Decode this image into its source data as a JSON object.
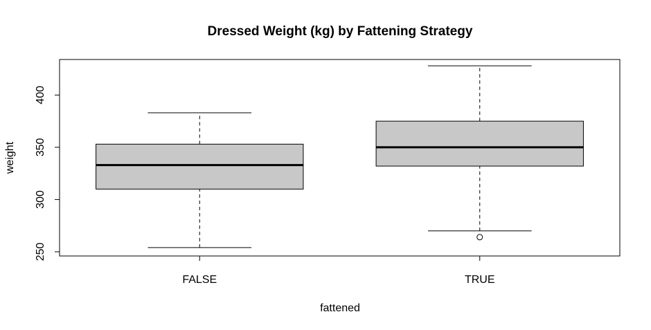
{
  "chart_data": {
    "type": "boxplot",
    "title": "Dressed Weight (kg) by Fattening Strategy",
    "xlabel": "fattened",
    "ylabel": "weight",
    "categories": [
      "FALSE",
      "TRUE"
    ],
    "ylim": [
      246,
      434
    ],
    "yticks": [
      "250",
      "300",
      "350",
      "400"
    ],
    "grid": false,
    "legend": "none",
    "box_fill": "#c8c8c8",
    "boxes": [
      {
        "category": "FALSE",
        "whisker_low": 254,
        "q1": 310,
        "median": 333,
        "q3": 353,
        "whisker_high": 383,
        "outliers": []
      },
      {
        "category": "TRUE",
        "whisker_low": 270,
        "q1": 332,
        "median": 350,
        "q3": 375,
        "whisker_high": 428,
        "outliers": [
          264
        ]
      }
    ]
  }
}
